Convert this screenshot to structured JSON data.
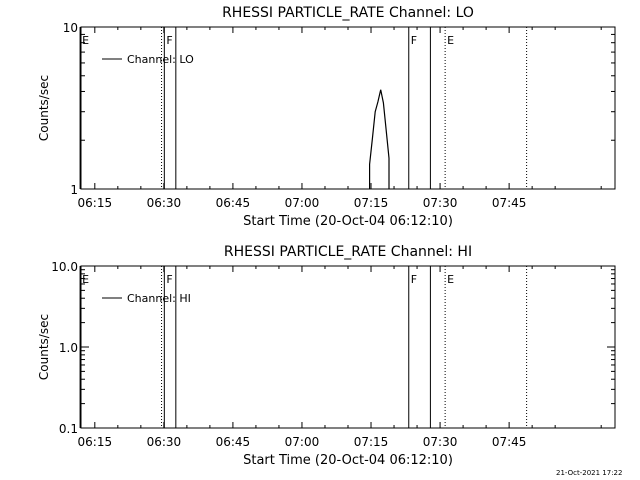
{
  "chart_data": [
    {
      "type": "line",
      "title": "RHESSI PARTICLE_RATE Channel: LO",
      "xlabel": "Start Time (20-Oct-04 06:12:10)",
      "ylabel": "Counts/sec",
      "yscale": "log",
      "ylim": [
        1,
        10
      ],
      "yticks": [
        {
          "v": 1,
          "label": "1"
        },
        {
          "v": 10,
          "label": "10"
        }
      ],
      "xlim": [
        372,
        488
      ],
      "xticks": [
        {
          "v": 375,
          "label": "06:15"
        },
        {
          "v": 390,
          "label": "06:30"
        },
        {
          "v": 405,
          "label": "06:45"
        },
        {
          "v": 420,
          "label": "07:00"
        },
        {
          "v": 435,
          "label": "07:15"
        },
        {
          "v": 450,
          "label": "07:30"
        },
        {
          "v": 465,
          "label": "07:45"
        }
      ],
      "legend": {
        "label": "Channel: LO",
        "placement": "top-left"
      },
      "series": [
        {
          "name": "Channel: LO",
          "x": [
            434.7,
            434.7,
            435.3,
            435.9,
            436.5,
            437.1,
            437.7,
            438.3,
            438.9,
            438.9
          ],
          "y": [
            1,
            1.42,
            2.05,
            3.0,
            3.45,
            4.1,
            3.4,
            2.3,
            1.55,
            1
          ]
        }
      ],
      "vlines": [
        {
          "x": 371.8,
          "style": "solid",
          "label": "E"
        },
        {
          "x": 389.5,
          "style": "dotted",
          "label": ""
        },
        {
          "x": 390.1,
          "style": "solid",
          "label": "F"
        },
        {
          "x": 392.6,
          "style": "solid",
          "label": ""
        },
        {
          "x": 443.2,
          "style": "solid",
          "label": "F"
        },
        {
          "x": 447.9,
          "style": "solid",
          "label": ""
        },
        {
          "x": 451.1,
          "style": "dotted",
          "label": "E"
        },
        {
          "x": 468.8,
          "style": "dotted",
          "label": ""
        }
      ]
    },
    {
      "type": "line",
      "title": "RHESSI PARTICLE_RATE Channel: HI",
      "xlabel": "Start Time (20-Oct-04 06:12:10)",
      "ylabel": "Counts/sec",
      "yscale": "log",
      "ylim": [
        0.1,
        10
      ],
      "yticks": [
        {
          "v": 0.1,
          "label": "0.1"
        },
        {
          "v": 1,
          "label": "1.0"
        },
        {
          "v": 10,
          "label": "10.0"
        }
      ],
      "xlim": [
        372,
        488
      ],
      "xticks": [
        {
          "v": 375,
          "label": "06:15"
        },
        {
          "v": 390,
          "label": "06:30"
        },
        {
          "v": 405,
          "label": "06:45"
        },
        {
          "v": 420,
          "label": "07:00"
        },
        {
          "v": 435,
          "label": "07:15"
        },
        {
          "v": 450,
          "label": "07:30"
        },
        {
          "v": 465,
          "label": "07:45"
        }
      ],
      "legend": {
        "label": "Channel: HI",
        "placement": "top-left"
      },
      "series": [
        {
          "name": "Channel: HI",
          "x": [],
          "y": []
        }
      ],
      "vlines": [
        {
          "x": 371.8,
          "style": "solid",
          "label": "E"
        },
        {
          "x": 389.5,
          "style": "dotted",
          "label": ""
        },
        {
          "x": 390.1,
          "style": "solid",
          "label": "F"
        },
        {
          "x": 392.6,
          "style": "solid",
          "label": ""
        },
        {
          "x": 443.2,
          "style": "solid",
          "label": "F"
        },
        {
          "x": 447.9,
          "style": "solid",
          "label": ""
        },
        {
          "x": 451.1,
          "style": "dotted",
          "label": "E"
        },
        {
          "x": 468.8,
          "style": "dotted",
          "label": ""
        }
      ]
    }
  ],
  "footer": {
    "timestamp": "21-Oct-2021 17:22"
  }
}
